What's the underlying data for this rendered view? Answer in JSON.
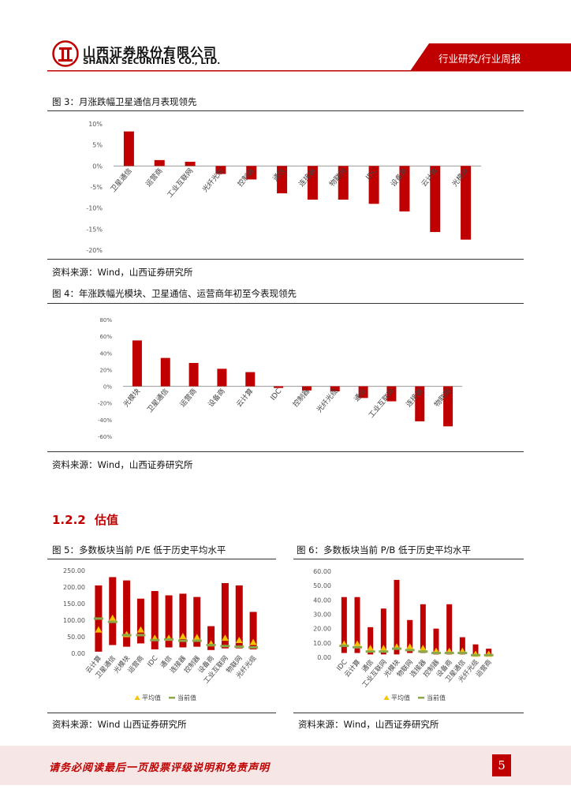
{
  "header": {
    "company_cn": "山西证券股份有限公司",
    "company_en": "SHANXI SECURITIES CO., LTD.",
    "section": "行业研究/行业周报"
  },
  "fig3": {
    "caption": "图 3：月涨跌幅卫星通信月表现领先",
    "source": "资料来源：Wind，山西证券研究所"
  },
  "fig4": {
    "caption": "图 4：年涨跌幅光模块、卫星通信、运营商年初至今表现领先",
    "source": "资料来源：Wind，山西证券研究所"
  },
  "section_heading": {
    "number": "1.2.2",
    "title": "估值"
  },
  "fig5": {
    "caption": "图 5：多数板块当前 P/E 低于历史平均水平",
    "source": "资料来源：Wind 山西证券研究所"
  },
  "fig6": {
    "caption": "图 6：多数板块当前 P/B 低于历史平均水平",
    "source": "资料来源：Wind，山西证券研究所"
  },
  "footer": {
    "disclaimer": "请务必阅读最后一页股票评级说明和免责声明",
    "page_number": "5"
  },
  "colors": {
    "brand_red": "#c00000",
    "bar_red": "#c00000",
    "avg_marker": "#f5c400",
    "current_marker": "#8aa84a",
    "footer_bg": "#f6e6e6"
  },
  "chart_data": [
    {
      "id": "fig3",
      "type": "bar",
      "categories": [
        "卫星通信",
        "运营商",
        "工业互联网",
        "光纤光缆",
        "控制器",
        "通信",
        "连接器",
        "物联网",
        "IDC",
        "设备商",
        "云计算",
        "光模块"
      ],
      "values": [
        8.2,
        1.4,
        1.0,
        -1.9,
        -3.2,
        -6.5,
        -8.0,
        -8.0,
        -9.0,
        -10.8,
        -15.7,
        -17.5
      ],
      "ylim": [
        -20,
        10
      ],
      "yticks": [
        "10%",
        "5%",
        "0%",
        "-5%",
        "-10%",
        "-15%",
        "-20%"
      ],
      "grid": false
    },
    {
      "id": "fig4",
      "type": "bar",
      "categories": [
        "光模块",
        "卫星通信",
        "运营商",
        "设备商",
        "云计算",
        "IDC",
        "控制器",
        "光纤光缆",
        "通信",
        "工业互联网",
        "连接器",
        "物联网"
      ],
      "values": [
        55,
        34,
        28,
        21,
        17,
        -2,
        -5,
        -6,
        -14,
        -18,
        -42,
        -48
      ],
      "ylim": [
        -60,
        80
      ],
      "yticks": [
        "80%",
        "60%",
        "40%",
        "20%",
        "0%",
        "-20%",
        "-40%",
        "-60%"
      ],
      "grid": false
    },
    {
      "id": "fig5",
      "type": "bar",
      "categories": [
        "云计算",
        "卫星通信",
        "光模块",
        "运营商",
        "IDC",
        "通信",
        "连接器",
        "控制器",
        "设备商",
        "工业互联网",
        "物联网",
        "光纤光缆"
      ],
      "range_low": [
        5,
        25,
        20,
        30,
        12,
        18,
        18,
        20,
        10,
        15,
        15,
        12
      ],
      "range_high": [
        205,
        230,
        220,
        165,
        188,
        175,
        180,
        170,
        82,
        212,
        205,
        125
      ],
      "average": [
        70,
        105,
        56,
        70,
        45,
        45,
        50,
        47,
        28,
        45,
        38,
        32
      ],
      "current": [
        105,
        95,
        55,
        55,
        40,
        42,
        38,
        38,
        25,
        22,
        20,
        18
      ],
      "ylim": [
        0,
        250
      ],
      "yticks": [
        "250.00",
        "200.00",
        "150.00",
        "100.00",
        "50.00",
        "0.00"
      ],
      "legend": [
        "平均值",
        "当前值"
      ],
      "legend_position": "bottom"
    },
    {
      "id": "fig6",
      "type": "bar",
      "categories": [
        "IDC",
        "云计算",
        "通信",
        "工业互联网",
        "光模块",
        "物联网",
        "连接器",
        "控制器",
        "设备商",
        "卫星通信",
        "光纤光缆",
        "运营商"
      ],
      "range_low": [
        3,
        3,
        2,
        2,
        2,
        3,
        3,
        2,
        2,
        2,
        1,
        1
      ],
      "range_high": [
        42,
        42,
        21,
        34,
        54,
        26,
        37,
        20,
        37,
        14,
        9,
        6
      ],
      "average": [
        9,
        9,
        6,
        6,
        7,
        7,
        6,
        4,
        4,
        4,
        2,
        2
      ],
      "current": [
        8,
        7,
        4,
        4,
        6,
        5,
        4,
        3,
        3,
        3,
        1.5,
        1.5
      ],
      "ylim": [
        0,
        60
      ],
      "yticks": [
        "60.00",
        "50.00",
        "40.00",
        "30.00",
        "20.00",
        "10.00",
        "0.00"
      ],
      "legend": [
        "平均值",
        "当前值"
      ],
      "legend_position": "bottom"
    }
  ]
}
